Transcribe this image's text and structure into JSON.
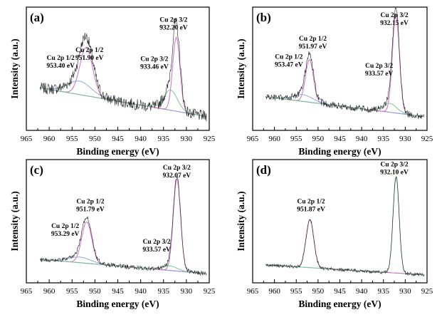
{
  "chart_data": [
    {
      "type": "line",
      "panel_label": "(a)",
      "xlabel": "Binding energy (eV)",
      "ylabel": "Intensity (a.u.)",
      "xlim": [
        965,
        925
      ],
      "x_ticks": [
        965,
        960,
        955,
        950,
        945,
        940,
        935,
        930,
        925
      ],
      "tick_labels": [
        "965",
        "960",
        "955",
        "950",
        "945",
        "940",
        "935",
        "930",
        "925"
      ],
      "noise": 0.05,
      "baseline": [
        [
          962,
          0.38
        ],
        [
          925,
          0.12
        ]
      ],
      "components": [
        {
          "name": "Cu 2p 1/2 (951.90 eV)",
          "center": 951.9,
          "height": 0.43,
          "width": 1.4,
          "color": "#d06ec8"
        },
        {
          "name": "Cu 2p 1/2 (953.40 eV)",
          "center": 953.4,
          "height": 0.12,
          "width": 2.6,
          "color": "#8fa8dd"
        },
        {
          "name": "Cu 2p 3/2 (932.20 eV)",
          "center": 932.2,
          "height": 0.66,
          "width": 0.8,
          "color": "#d06ec8"
        },
        {
          "name": "Cu 2p 3/2 (933.46 eV)",
          "center": 933.46,
          "height": 0.18,
          "width": 1.5,
          "color": "#77c896"
        }
      ],
      "annotations": [
        {
          "lines": [
            "Cu 2p 3/2",
            "932.20 eV"
          ],
          "at_x": 932.8,
          "at_y": 0.97
        },
        {
          "lines": [
            "Cu 2p 1/2",
            "951.90 eV"
          ],
          "at_x": 951.2,
          "at_y": 0.7
        },
        {
          "lines": [
            "Cu 2p 1/2",
            "953.40 eV"
          ],
          "at_x": 957.5,
          "at_y": 0.63
        },
        {
          "lines": [
            "Cu 2p 3/2",
            "933.46 eV"
          ],
          "at_x": 937.0,
          "at_y": 0.62
        }
      ]
    },
    {
      "type": "line",
      "panel_label": "(b)",
      "xlabel": "Binding energy (eV)",
      "ylabel": "Intensity (a.u.)",
      "xlim": [
        965,
        925
      ],
      "x_ticks": [
        965,
        960,
        955,
        950,
        945,
        940,
        935,
        930,
        925
      ],
      "tick_labels": [
        "965",
        "960",
        "955",
        "950",
        "945",
        "940",
        "935",
        "930",
        "925"
      ],
      "noise": 0.03,
      "baseline": [
        [
          962,
          0.3
        ],
        [
          925,
          0.12
        ]
      ],
      "components": [
        {
          "name": "Cu 2p 1/2 (951.97 eV)",
          "center": 951.97,
          "height": 0.38,
          "width": 0.9,
          "color": "#d06ec8"
        },
        {
          "name": "Cu 2p 1/2 (953.47 eV)",
          "center": 953.47,
          "height": 0.06,
          "width": 2.2,
          "color": "#8fa8dd"
        },
        {
          "name": "Cu 2p 3/2 (932.15 eV)",
          "center": 932.15,
          "height": 0.88,
          "width": 0.8,
          "color": "#d06ec8"
        },
        {
          "name": "Cu 2p 3/2 (933.57 eV)",
          "center": 933.57,
          "height": 0.08,
          "width": 1.6,
          "color": "#77c896"
        }
      ],
      "annotations": [
        {
          "lines": [
            "Cu 2p 3/2",
            "932.15 eV"
          ],
          "at_x": 932.5,
          "at_y": 1.01
        },
        {
          "lines": [
            "Cu 2p 1/2",
            "951.97 eV"
          ],
          "at_x": 951.2,
          "at_y": 0.8
        },
        {
          "lines": [
            "Cu 2p 1/2",
            "953.47 eV"
          ],
          "at_x": 956.7,
          "at_y": 0.64
        },
        {
          "lines": [
            "Cu 2p 3/2",
            "933.57 eV"
          ],
          "at_x": 936.0,
          "at_y": 0.56
        }
      ]
    },
    {
      "type": "line",
      "panel_label": "(c)",
      "xlabel": "Binding energy (eV)",
      "ylabel": "Intensity (a.u.)",
      "xlim": [
        965,
        925
      ],
      "x_ticks": [
        965,
        960,
        955,
        950,
        945,
        940,
        935,
        930,
        925
      ],
      "tick_labels": [
        "965",
        "960",
        "955",
        "950",
        "945",
        "940",
        "935",
        "930",
        "925"
      ],
      "noise": 0.02,
      "baseline": [
        [
          962,
          0.21
        ],
        [
          925,
          0.08
        ]
      ],
      "components": [
        {
          "name": "Cu 2p 1/2 (951.79 eV)",
          "center": 951.79,
          "height": 0.37,
          "width": 1.1,
          "color": "#d06ec8"
        },
        {
          "name": "Cu 2p 1/2 (953.29 eV)",
          "center": 953.29,
          "height": 0.05,
          "width": 2.4,
          "color": "#8fa8dd"
        },
        {
          "name": "Cu 2p 3/2 (932.07 eV)",
          "center": 932.07,
          "height": 0.82,
          "width": 0.8,
          "color": "#d06ec8"
        },
        {
          "name": "Cu 2p 3/2 (933.57 eV)",
          "center": 933.57,
          "height": 0.04,
          "width": 1.6,
          "color": "#77c896"
        }
      ],
      "annotations": [
        {
          "lines": [
            "Cu 2p 3/2",
            "932.07 eV"
          ],
          "at_x": 932.1,
          "at_y": 1.01
        },
        {
          "lines": [
            "Cu 2p 1/2",
            "951.79 eV"
          ],
          "at_x": 951.0,
          "at_y": 0.71
        },
        {
          "lines": [
            "Cu 2p 1/2",
            "953.29 eV"
          ],
          "at_x": 956.5,
          "at_y": 0.49
        },
        {
          "lines": [
            "Cu 2p 3/2",
            "933.57 eV"
          ],
          "at_x": 936.5,
          "at_y": 0.35
        }
      ]
    },
    {
      "type": "line",
      "panel_label": "(d)",
      "xlabel": "Binding energy (eV)",
      "ylabel": "Intensity (a.u.)",
      "xlim": [
        965,
        925
      ],
      "x_ticks": [
        965,
        960,
        955,
        950,
        945,
        940,
        935,
        930,
        925
      ],
      "tick_labels": [
        "965",
        "960",
        "955",
        "950",
        "945",
        "940",
        "935",
        "930",
        "925"
      ],
      "noise": 0.015,
      "baseline": [
        [
          962,
          0.16
        ],
        [
          925,
          0.07
        ]
      ],
      "components": [
        {
          "name": "Cu 2p 1/2 (951.87 eV)",
          "center": 951.87,
          "height": 0.43,
          "width": 0.9,
          "color": "#d06ec8"
        },
        {
          "name": "Cu 2p 3/2 (932.10 eV)",
          "center": 932.1,
          "height": 0.86,
          "width": 0.7,
          "color": "#77c896"
        }
      ],
      "annotations": [
        {
          "lines": [
            "Cu 2p 3/2",
            "932.10 eV"
          ],
          "at_x": 932.5,
          "at_y": 1.04
        },
        {
          "lines": [
            "Cu 2p 1/2",
            "951.87 eV"
          ],
          "at_x": 951.6,
          "at_y": 0.71
        }
      ]
    }
  ]
}
